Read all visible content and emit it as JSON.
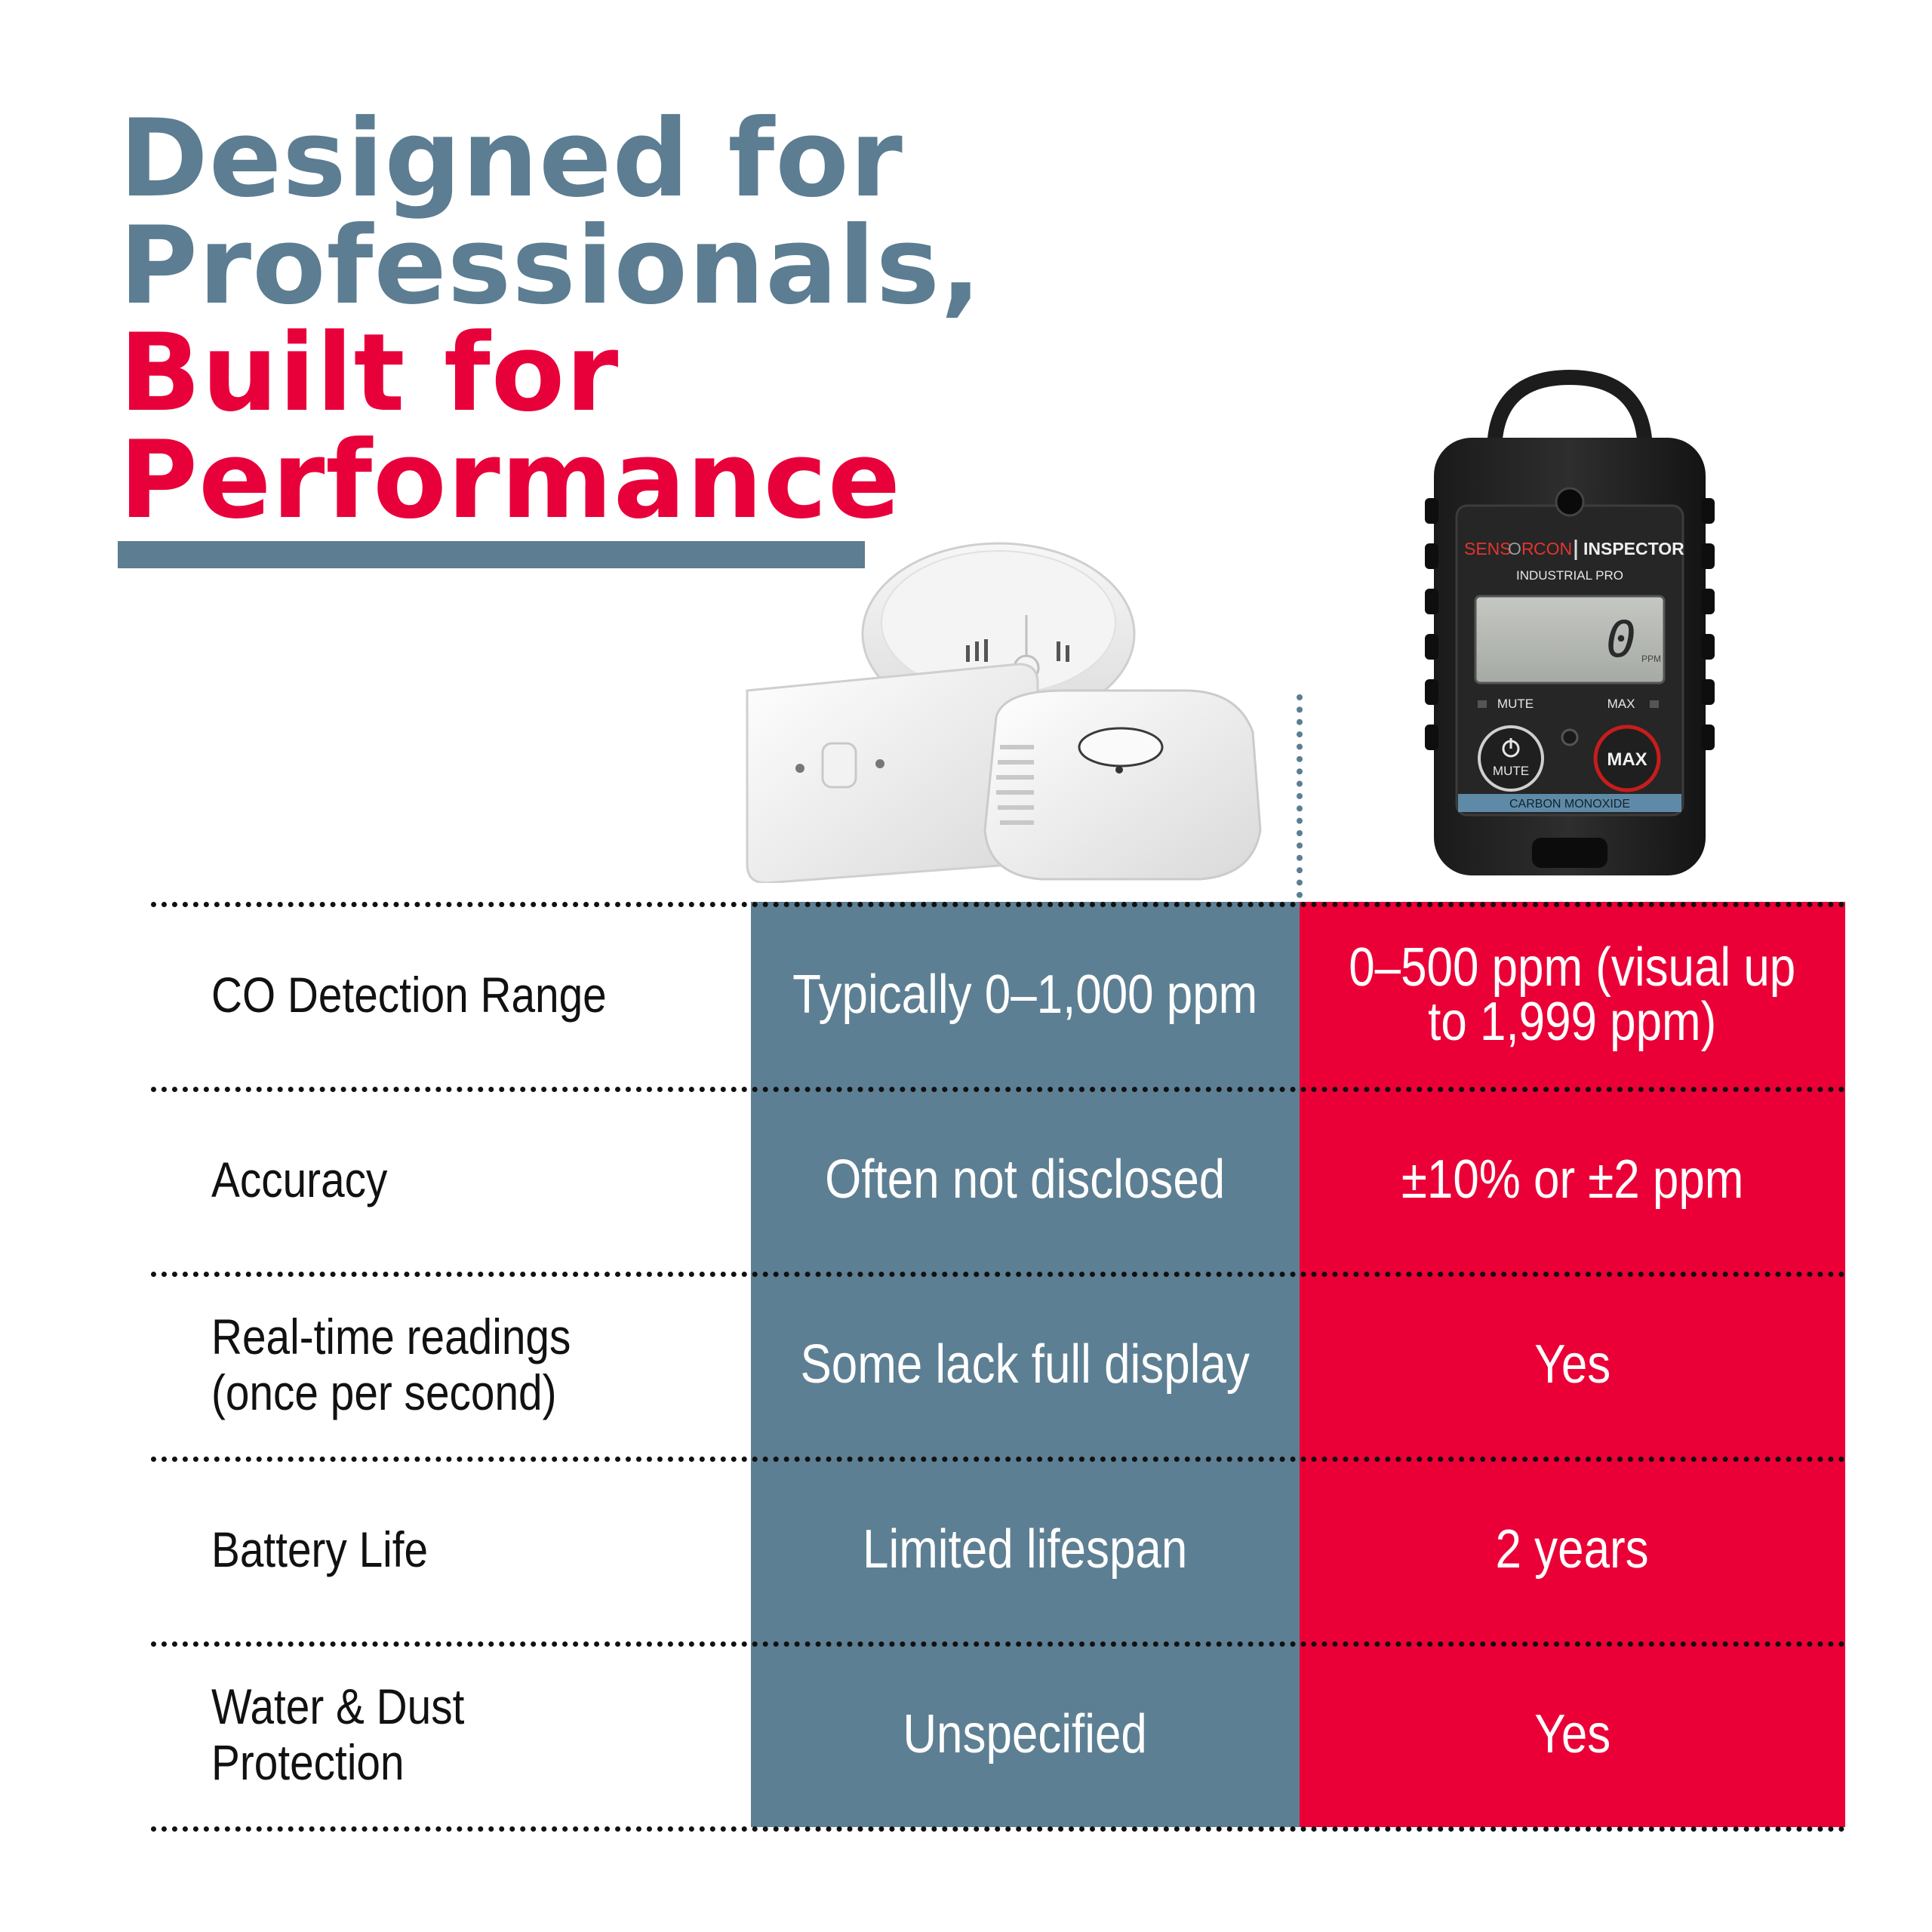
{
  "headline": {
    "line1": "Designed for",
    "line2": "Professionals,",
    "line3": "Built for",
    "line4": "Performance"
  },
  "device": {
    "brand_sensor": "SENS",
    "brand_o": "O",
    "brand_r": "R",
    "brand_con": "CON",
    "brand_inspector": "INSPECTOR",
    "model": "INDUSTRIAL PRO",
    "reading": "0",
    "unit": "PPM",
    "mute_indicator": "MUTE",
    "max_indicator": "MAX",
    "mute_button": "MUTE",
    "max_button": "MAX",
    "strip": "CARBON MONOXIDE"
  },
  "comparison": {
    "rows": [
      {
        "label": "CO Detection Range",
        "standard": "Typically 0–1,000 ppm",
        "inspector": "0–500 ppm (visual up\nto 1,999 ppm)"
      },
      {
        "label": "Accuracy",
        "standard": "Often not disclosed",
        "inspector": "±10% or ±2 ppm"
      },
      {
        "label": "Real-time readings\n(once per second)",
        "standard": "Some lack full display",
        "inspector": "Yes"
      },
      {
        "label": "Battery Life",
        "standard": "Limited lifespan",
        "inspector": "2 years"
      },
      {
        "label": "Water & Dust Protection",
        "standard": "Unspecified",
        "inspector": "Yes"
      }
    ]
  },
  "colors": {
    "slate": "#5d7f93",
    "red": "#ea0037",
    "text_dark": "#111111"
  }
}
